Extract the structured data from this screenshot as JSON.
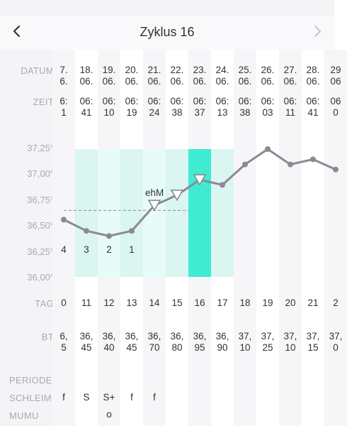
{
  "nav": {
    "title": "Zyklus 16"
  },
  "labels": {
    "datum": "DATUM",
    "zeit": "ZEIT",
    "tag": "TAG",
    "bt": "BT",
    "periode": "PERIODE",
    "schleim": "SCHLEIM",
    "mumu": "MUMU"
  },
  "y_axis": [
    "37,25°",
    "37,00°",
    "36,75°",
    "36,50°",
    "36,25°",
    "36,00°"
  ],
  "columns": [
    {
      "datum_top": "7.",
      "datum_bot": "6.",
      "zeit_top": "6:",
      "zeit_bot": "1",
      "tag": "0",
      "bt_top": "6,",
      "bt_bot": "5",
      "schleim": "f",
      "mumu": "",
      "count": "4"
    },
    {
      "datum_top": "18.",
      "datum_bot": "06.",
      "zeit_top": "06:",
      "zeit_bot": "41",
      "tag": "11",
      "bt_top": "36,",
      "bt_bot": "45",
      "schleim": "S",
      "mumu": "",
      "count": "3"
    },
    {
      "datum_top": "19.",
      "datum_bot": "06.",
      "zeit_top": "06:",
      "zeit_bot": "10",
      "tag": "12",
      "bt_top": "36,",
      "bt_bot": "40",
      "schleim": "S+",
      "mumu": "o",
      "count": "2"
    },
    {
      "datum_top": "20.",
      "datum_bot": "06.",
      "zeit_top": "06:",
      "zeit_bot": "19",
      "tag": "13",
      "bt_top": "36,",
      "bt_bot": "45",
      "schleim": "f",
      "mumu": "",
      "count": "1"
    },
    {
      "datum_top": "21.",
      "datum_bot": "06.",
      "zeit_top": "06:",
      "zeit_bot": "24",
      "tag": "14",
      "bt_top": "36,",
      "bt_bot": "70",
      "schleim": "f",
      "mumu": "",
      "count": ""
    },
    {
      "datum_top": "22.",
      "datum_bot": "06.",
      "zeit_top": "06:",
      "zeit_bot": "38",
      "tag": "15",
      "bt_top": "36,",
      "bt_bot": "80",
      "schleim": "",
      "mumu": "",
      "count": ""
    },
    {
      "datum_top": "23.",
      "datum_bot": "06.",
      "zeit_top": "06:",
      "zeit_bot": "37",
      "tag": "16",
      "bt_top": "36,",
      "bt_bot": "95",
      "schleim": "",
      "mumu": "",
      "count": ""
    },
    {
      "datum_top": "24.",
      "datum_bot": "06.",
      "zeit_top": "06:",
      "zeit_bot": "13",
      "tag": "17",
      "bt_top": "36,",
      "bt_bot": "90",
      "schleim": "",
      "mumu": "",
      "count": ""
    },
    {
      "datum_top": "25.",
      "datum_bot": "06.",
      "zeit_top": "06:",
      "zeit_bot": "38",
      "tag": "18",
      "bt_top": "37,",
      "bt_bot": "10",
      "schleim": "",
      "mumu": "",
      "count": ""
    },
    {
      "datum_top": "26.",
      "datum_bot": "06.",
      "zeit_top": "06:",
      "zeit_bot": "03",
      "tag": "19",
      "bt_top": "37,",
      "bt_bot": "25",
      "schleim": "",
      "mumu": "",
      "count": ""
    },
    {
      "datum_top": "27.",
      "datum_bot": "06.",
      "zeit_top": "06:",
      "zeit_bot": "11",
      "tag": "20",
      "bt_top": "37,",
      "bt_bot": "10",
      "schleim": "",
      "mumu": "",
      "count": ""
    },
    {
      "datum_top": "28.",
      "datum_bot": "06.",
      "zeit_top": "06:",
      "zeit_bot": "41",
      "tag": "21",
      "bt_top": "37,",
      "bt_bot": "15",
      "schleim": "",
      "mumu": "",
      "count": ""
    },
    {
      "datum_top": "29",
      "datum_bot": "06",
      "zeit_top": "06",
      "zeit_bot": "0",
      "tag": "2",
      "bt_top": "37,",
      "bt_bot": "0",
      "schleim": "",
      "mumu": "",
      "count": ""
    }
  ],
  "temps": [
    36.56,
    36.45,
    36.4,
    36.45,
    36.7,
    36.8,
    36.95,
    36.9,
    37.1,
    37.25,
    37.1,
    37.15,
    37.05
  ],
  "chart": {
    "ymin": 36.0,
    "ymax": 37.25,
    "coverline": 36.65,
    "annotation": "ehM"
  },
  "colors": {
    "accent": "#3fecd2",
    "zone": "#e7fbf7",
    "zone_alt": "#dbf5f1",
    "line": "#8a8a94",
    "label": "#a8a8b0"
  }
}
